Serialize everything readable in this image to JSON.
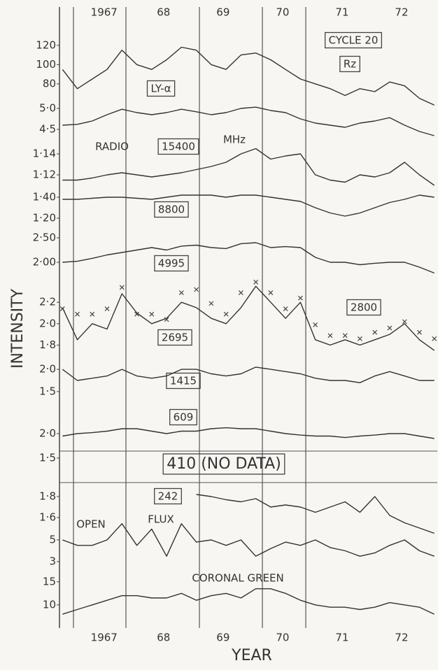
{
  "chart_data": {
    "type": "line",
    "ylabel": "INTENSITY",
    "xlabel": "YEAR",
    "xlim": [
      1966.25,
      1972.6
    ],
    "xticks": [
      1967,
      {
        "value": 1968,
        "label": "68"
      },
      {
        "value": 1969,
        "label": "69"
      },
      {
        "value": 1970,
        "label": "70"
      },
      {
        "value": 1971,
        "label": "71"
      },
      {
        "value": 1972,
        "label": "72"
      }
    ],
    "x": [
      1966.3,
      1966.55,
      1966.8,
      1967.05,
      1967.3,
      1967.55,
      1967.8,
      1968.05,
      1968.3,
      1968.55,
      1968.8,
      1969.05,
      1969.3,
      1969.55,
      1969.8,
      1970.05,
      1970.3,
      1970.55,
      1970.8,
      1971.05,
      1971.3,
      1971.55,
      1971.8,
      1972.05,
      1972.3,
      1972.55
    ],
    "note_box": "410 (NO DATA)",
    "panels": [
      {
        "labels": [
          "CYCLE 20",
          "Rz"
        ],
        "ylim": [
          60,
          130
        ],
        "yticks": [
          120,
          100,
          80
        ],
        "values": [
          95,
          75,
          85,
          95,
          115,
          100,
          95,
          105,
          118,
          115,
          100,
          95,
          110,
          112,
          105,
          95,
          85,
          80,
          75,
          68,
          75,
          72,
          82,
          78,
          65,
          58
        ]
      },
      {
        "labels": [
          "LY-α"
        ],
        "ylim": [
          4.0,
          5.3
        ],
        "yticks": [
          {
            "value": 5.0,
            "label": "5·0"
          },
          {
            "value": 4.5,
            "label": "4·5"
          }
        ],
        "values": [
          4.6,
          4.62,
          4.7,
          4.85,
          4.98,
          4.9,
          4.85,
          4.9,
          4.98,
          4.92,
          4.85,
          4.9,
          5.0,
          5.03,
          4.95,
          4.9,
          4.75,
          4.65,
          4.6,
          4.55,
          4.65,
          4.7,
          4.78,
          4.6,
          4.45,
          4.35
        ]
      },
      {
        "labels": [
          "RADIO",
          "15400",
          "MHz"
        ],
        "ylim": [
          1.1,
          1.16
        ],
        "yticks": [
          {
            "value": 1.14,
            "label": "1·14"
          },
          {
            "value": 1.12,
            "label": "1·12"
          }
        ],
        "values": [
          1.115,
          1.115,
          1.117,
          1.12,
          1.122,
          1.12,
          1.118,
          1.12,
          1.122,
          1.125,
          1.128,
          1.132,
          1.14,
          1.145,
          1.135,
          1.138,
          1.14,
          1.12,
          1.115,
          1.113,
          1.12,
          1.118,
          1.122,
          1.132,
          1.12,
          1.11
        ]
      },
      {
        "labels": [
          "8800"
        ],
        "ylim": [
          1.0,
          1.6
        ],
        "yticks": [
          {
            "value": 1.4,
            "label": "1·40"
          },
          {
            "value": 1.2,
            "label": "1·20"
          }
        ],
        "values": [
          1.38,
          1.38,
          1.39,
          1.4,
          1.4,
          1.39,
          1.38,
          1.4,
          1.42,
          1.42,
          1.42,
          1.4,
          1.42,
          1.42,
          1.4,
          1.38,
          1.36,
          1.3,
          1.25,
          1.22,
          1.25,
          1.3,
          1.35,
          1.38,
          1.42,
          1.4
        ]
      },
      {
        "labels": [
          "4995"
        ],
        "ylim": [
          1.5,
          2.8
        ],
        "yticks": [
          {
            "value": 2.5,
            "label": "2·50"
          },
          {
            "value": 2.0,
            "label": "2·00"
          }
        ],
        "values": [
          2.0,
          2.02,
          2.08,
          2.15,
          2.2,
          2.25,
          2.3,
          2.25,
          2.33,
          2.35,
          2.3,
          2.28,
          2.38,
          2.4,
          2.3,
          2.32,
          2.3,
          2.1,
          2.0,
          2.0,
          1.95,
          1.98,
          2.0,
          2.0,
          1.9,
          1.78
        ]
      },
      {
        "labels": [
          "2695",
          "2800"
        ],
        "ylim": [
          1.6,
          2.45
        ],
        "yticks": [
          {
            "value": 2.2,
            "label": "2·2"
          },
          {
            "value": 2.0,
            "label": "2·0"
          },
          {
            "value": 1.8,
            "label": "1·8"
          }
        ],
        "values": [
          2.15,
          1.85,
          2.0,
          1.95,
          2.28,
          2.1,
          2.0,
          2.05,
          2.2,
          2.15,
          2.05,
          2.0,
          2.15,
          2.35,
          2.2,
          2.05,
          2.2,
          1.85,
          1.8,
          1.85,
          1.8,
          1.85,
          1.9,
          2.0,
          1.85,
          1.75
        ],
        "cross_values": [
          2.1,
          2.05,
          2.05,
          2.1,
          2.3,
          2.05,
          2.05,
          2.0,
          2.25,
          2.28,
          2.15,
          2.05,
          2.25,
          2.35,
          2.25,
          2.1,
          2.2,
          1.95,
          1.85,
          1.85,
          1.82,
          1.88,
          1.92,
          1.98,
          1.88,
          1.82
        ]
      },
      {
        "labels": [
          "1415"
        ],
        "ylim": [
          1.2,
          2.3
        ],
        "yticks": [
          {
            "value": 2.0,
            "label": "2·0"
          },
          {
            "value": 1.5,
            "label": "1·5"
          }
        ],
        "values": [
          2.0,
          1.75,
          1.8,
          1.85,
          2.0,
          1.85,
          1.8,
          1.85,
          2.0,
          2.0,
          1.9,
          1.85,
          1.9,
          2.05,
          2.0,
          1.95,
          1.9,
          1.8,
          1.75,
          1.75,
          1.7,
          1.85,
          1.95,
          1.85,
          1.75,
          1.75
        ]
      },
      {
        "labels": [
          "609"
        ],
        "ylim": [
          1.4,
          2.3
        ],
        "yticks": [
          {
            "value": 2.0,
            "label": "2·0"
          },
          {
            "value": 1.5,
            "label": "1·5"
          }
        ],
        "values": [
          1.95,
          2.0,
          2.02,
          2.05,
          2.1,
          2.1,
          2.05,
          2.0,
          2.05,
          2.05,
          2.1,
          2.12,
          2.1,
          2.1,
          2.05,
          2.0,
          1.97,
          1.95,
          1.95,
          1.92,
          1.95,
          1.97,
          2.0,
          2.0,
          1.95,
          1.9
        ]
      },
      {
        "labels": [
          "242"
        ],
        "ylim": [
          1.4,
          1.9
        ],
        "yticks": [
          {
            "value": 1.8,
            "label": "1·8"
          },
          {
            "value": 1.6,
            "label": "1·6"
          }
        ],
        "values": [
          null,
          null,
          null,
          null,
          null,
          null,
          null,
          null,
          null,
          1.82,
          1.8,
          1.77,
          1.75,
          1.78,
          1.7,
          1.72,
          1.7,
          1.65,
          1.7,
          1.75,
          1.65,
          1.8,
          1.62,
          1.55,
          1.5,
          1.45
        ]
      },
      {
        "labels": [
          "OPEN",
          "FLUX"
        ],
        "ylim": [
          2,
          7
        ],
        "yticks": [
          5,
          3
        ],
        "values": [
          5,
          4.5,
          4.5,
          5,
          6.5,
          4.5,
          6,
          3.5,
          6.5,
          4.8,
          5,
          4.5,
          5,
          3.5,
          4.2,
          4.8,
          4.5,
          5,
          4.3,
          4,
          3.5,
          3.8,
          4.5,
          5,
          4,
          3.5
        ]
      },
      {
        "labels": [
          "CORONAL  GREEN"
        ],
        "ylim": [
          5,
          18
        ],
        "yticks": [
          15,
          10
        ],
        "values": [
          8,
          9,
          10,
          11,
          12,
          12,
          11.5,
          11.5,
          12.5,
          11,
          12,
          12.5,
          11.5,
          13.5,
          13.5,
          12.5,
          11,
          10,
          9.5,
          9.5,
          9,
          9.5,
          10.5,
          10,
          9.5,
          8
        ]
      }
    ]
  }
}
